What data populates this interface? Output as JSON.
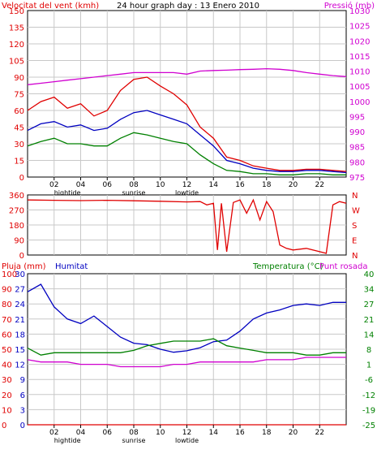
{
  "title": "24 hour graph day : 13 Enero 2010",
  "colors": {
    "wind": "#e00000",
    "gust_avg": "#0000c0",
    "wind_low": "#008000",
    "pressure": "#d000d0",
    "rain": "#e00000",
    "humidity": "#0000c0",
    "temperature": "#008000",
    "dewpoint": "#d000d0",
    "grid": "#c8c8c8",
    "frame": "#000000"
  },
  "x_ticks": [
    "02",
    "04",
    "06",
    "08",
    "10",
    "12",
    "14",
    "16",
    "18",
    "20",
    "22"
  ],
  "x_annotations": [
    {
      "label": "hightide",
      "at": "03"
    },
    {
      "label": "sunrise",
      "at": "08"
    },
    {
      "label": "lowtide",
      "at": "12"
    }
  ],
  "chart_data": [
    {
      "type": "line",
      "panel": "wind",
      "left_label": "Velocitat del vent (kmh)",
      "right_label": "Pressió (mb)",
      "y_left_ticks": [
        "150",
        "135",
        "120",
        "105",
        "90",
        "75",
        "60",
        "45",
        "30",
        "15",
        "0"
      ],
      "y_right_ticks": [
        "1030",
        "1025",
        "1020",
        "1015",
        "1010",
        "1005",
        "1000",
        "995",
        "990",
        "985",
        "980",
        "975"
      ],
      "ylim_left": [
        0,
        150
      ],
      "ylim_right": [
        975,
        1030
      ],
      "xlim_hours": [
        0,
        24
      ],
      "series": [
        {
          "key": "wind",
          "hours": [
            0,
            1,
            2,
            3,
            4,
            5,
            6,
            7,
            8,
            9,
            10,
            11,
            12,
            13,
            14,
            15,
            16,
            17,
            18,
            19,
            20,
            21,
            22,
            23,
            24
          ],
          "values": [
            60,
            68,
            72,
            62,
            66,
            55,
            60,
            78,
            88,
            90,
            82,
            75,
            65,
            45,
            35,
            18,
            15,
            10,
            8,
            6,
            6,
            7,
            7,
            6,
            5
          ]
        },
        {
          "key": "gust_avg",
          "hours": [
            0,
            1,
            2,
            3,
            4,
            5,
            6,
            7,
            8,
            9,
            10,
            11,
            12,
            13,
            14,
            15,
            16,
            17,
            18,
            19,
            20,
            21,
            22,
            23,
            24
          ],
          "values": [
            42,
            48,
            50,
            45,
            47,
            42,
            44,
            52,
            58,
            60,
            56,
            52,
            48,
            38,
            28,
            15,
            12,
            8,
            6,
            5,
            5,
            6,
            6,
            5,
            4
          ]
        },
        {
          "key": "wind_low",
          "hours": [
            0,
            1,
            2,
            3,
            4,
            5,
            6,
            7,
            8,
            9,
            10,
            11,
            12,
            13,
            14,
            15,
            16,
            17,
            18,
            19,
            20,
            21,
            22,
            23,
            24
          ],
          "values": [
            28,
            32,
            35,
            30,
            30,
            28,
            28,
            35,
            40,
            38,
            35,
            32,
            30,
            20,
            12,
            6,
            5,
            3,
            3,
            2,
            2,
            3,
            3,
            2,
            2
          ]
        },
        {
          "key": "pressure",
          "hours": [
            0,
            1,
            2,
            3,
            4,
            5,
            6,
            7,
            8,
            9,
            10,
            11,
            12,
            13,
            14,
            15,
            16,
            17,
            18,
            19,
            20,
            21,
            22,
            23,
            24
          ],
          "values": [
            1005.5,
            1006,
            1006.5,
            1007,
            1007.5,
            1008,
            1008.5,
            1009,
            1009.5,
            1009.5,
            1009.5,
            1009.5,
            1009,
            1010,
            1010.2,
            1010.3,
            1010.5,
            1010.6,
            1010.8,
            1010.6,
            1010.2,
            1009.5,
            1009,
            1008.5,
            1008.2
          ]
        }
      ]
    },
    {
      "type": "line",
      "panel": "direction",
      "y_left_ticks": [
        "360",
        "270",
        "180",
        "90",
        "0"
      ],
      "y_right_labels": [
        "N",
        "W",
        "S",
        "E",
        "N"
      ],
      "ylim": [
        0,
        360
      ],
      "xlim_hours": [
        0,
        24
      ],
      "series": [
        {
          "key": "wind_direction",
          "hours": [
            0,
            2,
            4,
            6,
            8,
            10,
            12,
            13,
            13.5,
            14,
            14.3,
            14.6,
            15,
            15.5,
            16,
            16.5,
            17,
            17.5,
            18,
            18.5,
            19,
            19.5,
            20,
            21,
            22,
            22.5,
            23,
            23.5,
            24
          ],
          "values": [
            330,
            328,
            326,
            328,
            325,
            322,
            318,
            320,
            300,
            310,
            30,
            310,
            20,
            315,
            330,
            250,
            330,
            210,
            320,
            260,
            60,
            40,
            30,
            40,
            20,
            10,
            300,
            320,
            310
          ]
        }
      ]
    },
    {
      "type": "line",
      "panel": "rain_humidity_temperature",
      "left_label_1": "Pluja (mm)",
      "left_label_2": "Humitat",
      "right_label_1": "Temperatura (°C)",
      "right_label_2": "Punt rosada",
      "y_left_ticks_1": [
        "100",
        "90",
        "80",
        "70",
        "60",
        "50",
        "40",
        "30",
        "20",
        "10",
        "0"
      ],
      "y_left_ticks_2": [
        "30",
        "27",
        "24",
        "21",
        "18",
        "15",
        "12",
        "9",
        "6",
        "3",
        "0"
      ],
      "y_right_ticks": [
        "40",
        "34",
        "27",
        "21",
        "14",
        "8",
        "1",
        "-6",
        "-12",
        "-19",
        "-25"
      ],
      "ylim_humidity": [
        0,
        100
      ],
      "ylim_temperature": [
        -25,
        40
      ],
      "xlim_hours": [
        0,
        24
      ],
      "series": [
        {
          "key": "rain",
          "hours": [
            0,
            24
          ],
          "values": [
            0,
            0
          ]
        },
        {
          "key": "humidity",
          "hours": [
            0,
            1,
            2,
            3,
            4,
            5,
            6,
            7,
            8,
            9,
            10,
            11,
            12,
            13,
            14,
            15,
            16,
            17,
            18,
            19,
            20,
            21,
            22,
            23,
            24
          ],
          "values": [
            88,
            93,
            78,
            70,
            67,
            72,
            65,
            58,
            54,
            53,
            50,
            48,
            49,
            51,
            55,
            56,
            62,
            70,
            74,
            76,
            79,
            80,
            79,
            81,
            81
          ]
        },
        {
          "key": "temperature",
          "hours": [
            0,
            1,
            2,
            3,
            4,
            5,
            6,
            7,
            8,
            9,
            10,
            11,
            12,
            13,
            14,
            15,
            16,
            17,
            18,
            19,
            20,
            21,
            22,
            23,
            24
          ],
          "values": [
            8,
            5,
            6,
            6,
            6,
            6,
            6,
            6,
            7,
            9,
            10,
            11,
            11,
            11,
            12,
            9,
            8,
            7,
            6,
            6,
            6,
            5,
            5,
            6,
            6
          ]
        },
        {
          "key": "dewpoint",
          "hours": [
            0,
            1,
            2,
            3,
            4,
            5,
            6,
            7,
            8,
            9,
            10,
            11,
            12,
            13,
            14,
            15,
            16,
            17,
            18,
            19,
            20,
            21,
            22,
            23,
            24
          ],
          "values": [
            3,
            2,
            2,
            2,
            1,
            1,
            1,
            0,
            0,
            0,
            0,
            1,
            1,
            2,
            2,
            2,
            2,
            2,
            3,
            3,
            3,
            4,
            4,
            4,
            4
          ]
        }
      ]
    }
  ]
}
